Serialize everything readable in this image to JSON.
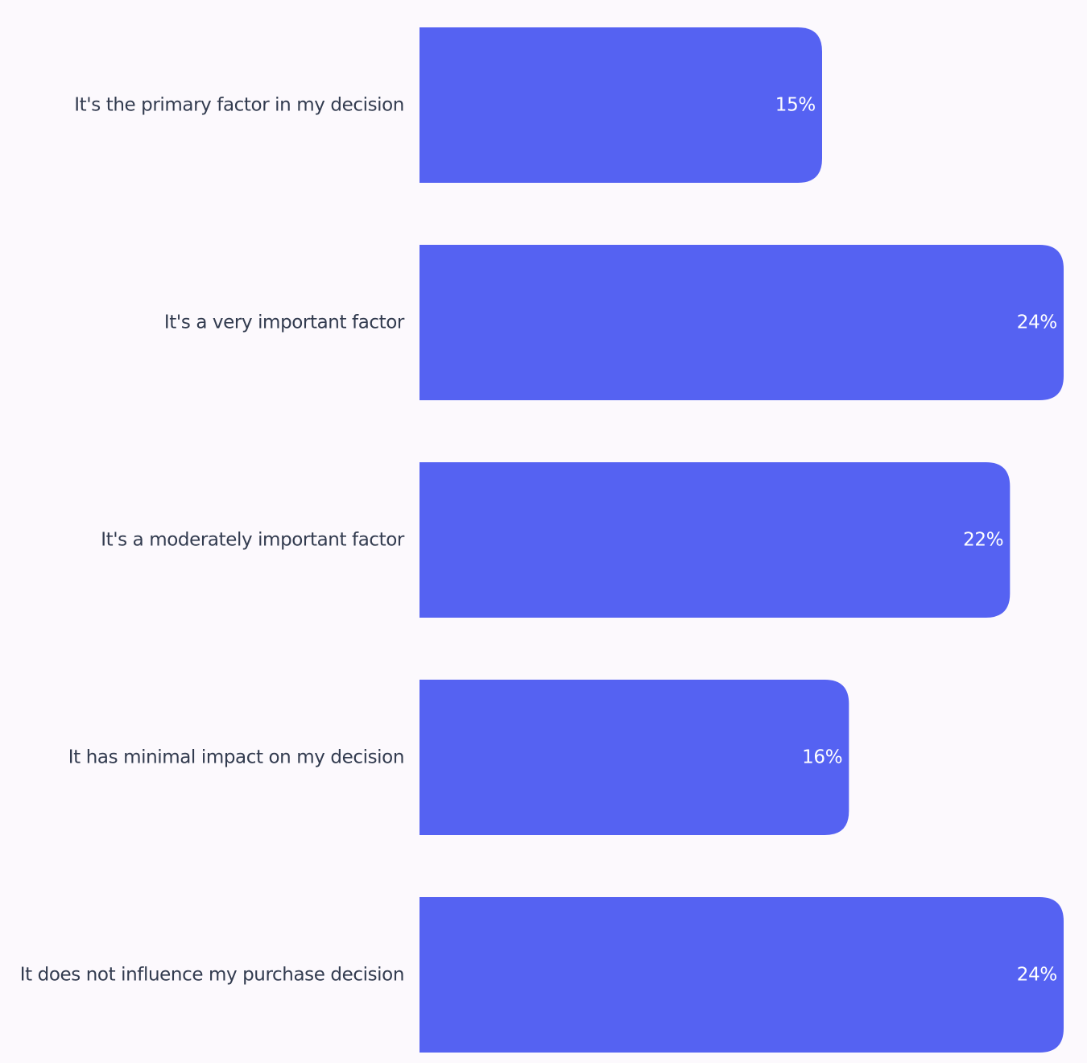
{
  "chart_data": {
    "type": "bar",
    "orientation": "horizontal",
    "categories": [
      "It's the primary factor in my decision",
      "It's a very important factor",
      "It's a moderately important factor",
      "It has minimal impact on my decision",
      "It does not influence my purchase decision"
    ],
    "values": [
      15,
      24,
      22,
      16,
      24
    ],
    "value_labels": [
      "15%",
      "24%",
      "22%",
      "16%",
      "24%"
    ],
    "unit": "%",
    "xlim": [
      0,
      24
    ],
    "grid": false,
    "legend": "none"
  },
  "colors": {
    "background": "#fcf9fd",
    "bar": "#5562f2",
    "category_text": "#323b4f",
    "value_text": "#ffffff"
  }
}
